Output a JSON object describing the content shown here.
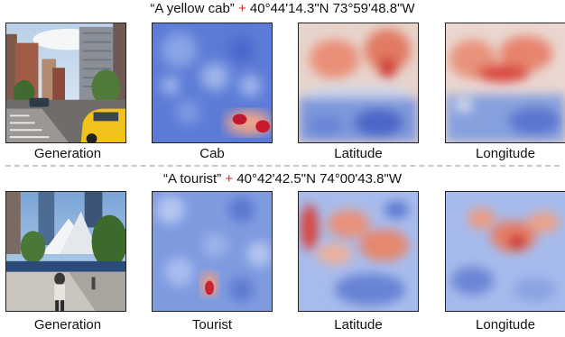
{
  "rows": [
    {
      "prompt": "“A yellow cab”",
      "plus": "+",
      "coords": "40°44'14.3\"N 73°59'48.8\"W",
      "captions": [
        "Generation",
        "Cab",
        "Latitude",
        "Longitude"
      ]
    },
    {
      "prompt": "“A tourist”",
      "plus": "+",
      "coords": "40°42'42.5\"N 74°00'43.8\"W",
      "captions": [
        "Generation",
        "Tourist",
        "Latitude",
        "Longitude"
      ]
    }
  ],
  "colors": {
    "plus": "#e02020",
    "heat_low": "#3b4cc0",
    "heat_mid": "#dddddd",
    "heat_high": "#b40426"
  }
}
